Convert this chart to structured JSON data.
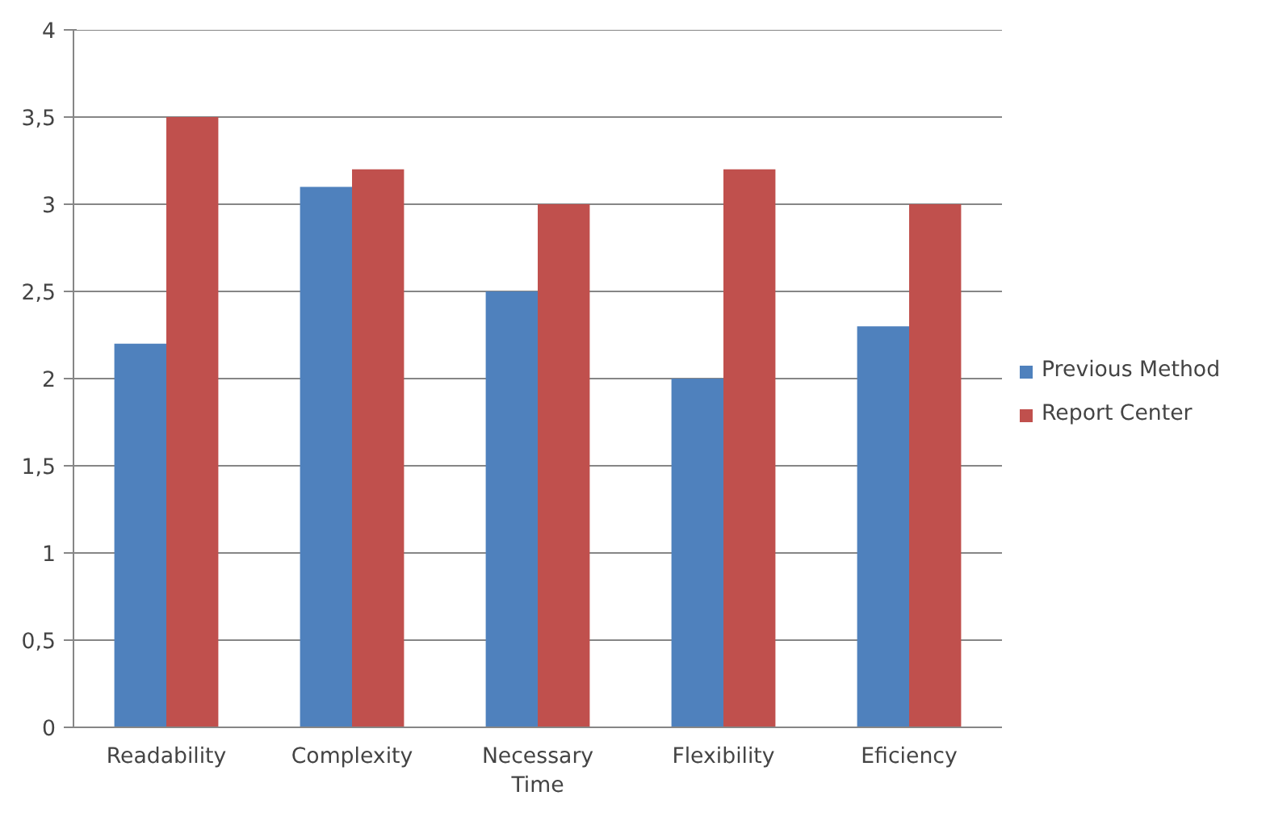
{
  "chart_data": {
    "type": "bar",
    "categories": [
      "Readability",
      "Complexity",
      "Necessary Time",
      "Flexibility",
      "Eficiency"
    ],
    "series": [
      {
        "name": "Previous Method",
        "color": "#4f81bd",
        "values": [
          2.2,
          3.1,
          2.5,
          2.0,
          2.3
        ]
      },
      {
        "name": "Report Center",
        "color": "#c0504d",
        "values": [
          3.5,
          3.2,
          3.0,
          3.2,
          3.0
        ]
      }
    ],
    "ylim": [
      0,
      4
    ],
    "yticks": [
      0,
      {
        "value": 0.5,
        "label": "0,5"
      },
      1,
      {
        "value": 1.5,
        "label": "1,5"
      },
      2,
      {
        "value": 2.5,
        "label": "2,5"
      },
      3,
      {
        "value": 3.5,
        "label": "3,5"
      },
      4
    ],
    "grid": "y",
    "legend": "right"
  }
}
